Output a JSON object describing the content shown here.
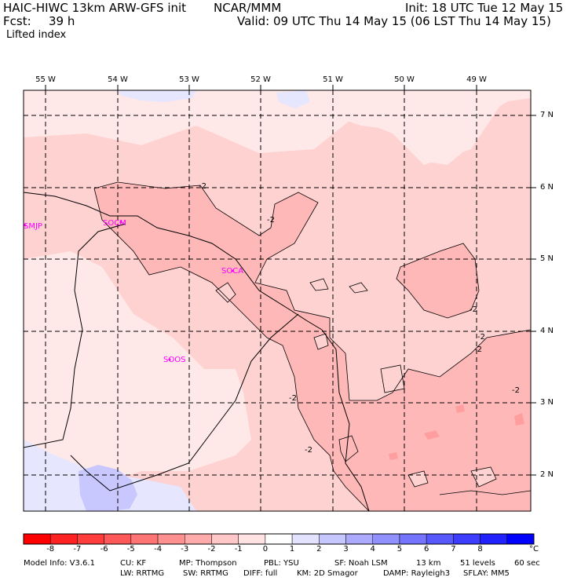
{
  "header": {
    "model": "HAIC-HIWC 13km ARW-GFS init",
    "org": "NCAR/MMM",
    "init": "Init: 18 UTC Tue 12 May 15",
    "fcst_label": "Fcst:",
    "fcst_value": "39 h",
    "valid": "Valid: 09 UTC Thu 14 May 15 (06 LST Thu 14 May 15)",
    "field": "Lifted index"
  },
  "axes": {
    "longitudes": [
      "55 W",
      "54 W",
      "53 W",
      "52 W",
      "51 W",
      "50 W",
      "49 W"
    ],
    "latitudes": [
      "7 N",
      "6 N",
      "5 N",
      "4 N",
      "3 N",
      "2 N"
    ]
  },
  "stations": [
    "SMJP",
    "SOCM",
    "SOCA",
    "SOOS"
  ],
  "contour_label": "-2",
  "colorbar": {
    "labels": [
      "-8",
      "-7",
      "-6",
      "-5",
      "-4",
      "-3",
      "-2",
      "-1",
      "0",
      "1",
      "2",
      "3",
      "4",
      "5",
      "6",
      "7",
      "8"
    ],
    "unit": "°C",
    "colors": [
      "#ff0000",
      "#ff2222",
      "#ff3d3d",
      "#ff5858",
      "#ff7474",
      "#ff9090",
      "#ffabab",
      "#ffc7c7",
      "#ffe3e3",
      "#ffffff",
      "#e3e3ff",
      "#c7c7ff",
      "#abaaff",
      "#9090ff",
      "#7474ff",
      "#5858ff",
      "#3d3dff",
      "#2222ff",
      "#0000ff"
    ]
  },
  "field_colors": {
    "light": "#ffe8e8",
    "pale": "#ffd2d2",
    "medium": "#ffb8b8",
    "strong": "#ff9e9e",
    "blue_pale": "#e6e6ff",
    "blue": "#c8c8ff"
  },
  "footer": {
    "line1": [
      "Model Info: V3.6.1",
      "CU: KF",
      "MP: Thompson",
      "PBL: YSU",
      "SF: Noah LSM",
      "13 km",
      "51 levels",
      "60 sec"
    ],
    "line2": [
      "LW: RRTMG",
      "SW: RRTMG",
      "DIFF: full",
      "KM: 2D Smagor",
      "DAMP: Rayleigh3",
      "SFLAY: MM5"
    ]
  }
}
